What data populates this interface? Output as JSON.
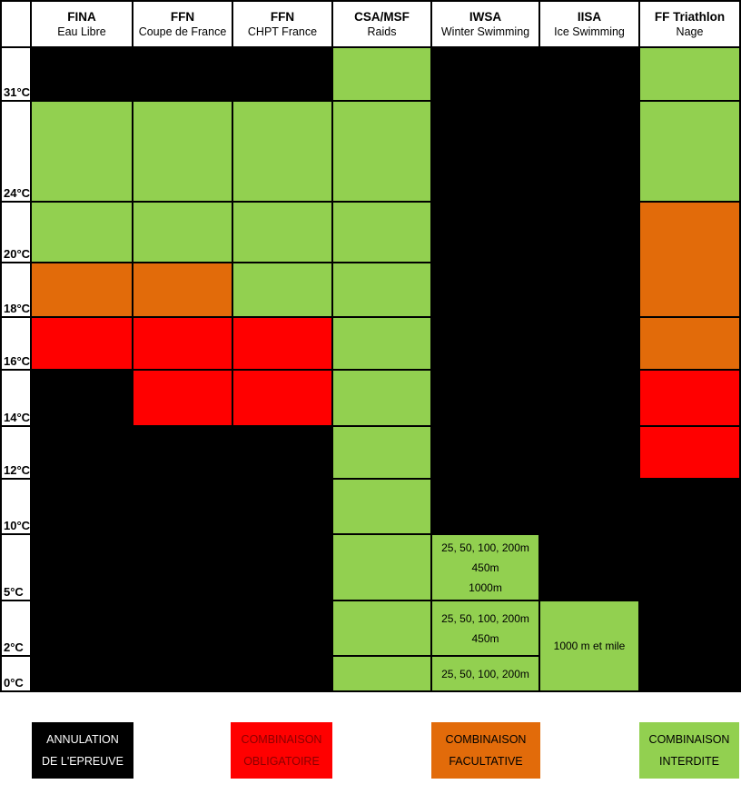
{
  "colors": {
    "black": "#000000",
    "green": "#92D050",
    "orange": "#E26B0A",
    "red": "#FF0000",
    "white": "#FFFFFF",
    "dark_red_text": "#8B0000"
  },
  "headers": [
    {
      "org": "FINA",
      "sub": "Eau Libre"
    },
    {
      "org": "FFN",
      "sub": "Coupe de France"
    },
    {
      "org": "FFN",
      "sub": "CHPT France"
    },
    {
      "org": "CSA/MSF",
      "sub": "Raids"
    },
    {
      "org": "IWSA",
      "sub": "Winter Swimming"
    },
    {
      "org": "IISA",
      "sub": "Ice Swimming"
    },
    {
      "org": "FF Triathlon",
      "sub": "Nage"
    }
  ],
  "row_labels": [
    "31°C",
    "24°C",
    "20°C",
    "18°C",
    "16°C",
    "14°C",
    "12°C",
    "10°C",
    "5°C",
    "2°C",
    "0°C"
  ],
  "grid": [
    {
      "column": "FINA Eau Libre",
      "cells": [
        {
          "r": 0,
          "s": 1,
          "color": "black"
        },
        {
          "r": 1,
          "s": 1,
          "color": "green"
        },
        {
          "r": 2,
          "s": 1,
          "color": "green"
        },
        {
          "r": 3,
          "s": 1,
          "color": "orange"
        },
        {
          "r": 4,
          "s": 1,
          "color": "red"
        },
        {
          "r": 5,
          "s": 6,
          "color": "black"
        }
      ]
    },
    {
      "column": "FFN Coupe de France",
      "cells": [
        {
          "r": 0,
          "s": 1,
          "color": "black"
        },
        {
          "r": 1,
          "s": 1,
          "color": "green"
        },
        {
          "r": 2,
          "s": 1,
          "color": "green"
        },
        {
          "r": 3,
          "s": 1,
          "color": "orange"
        },
        {
          "r": 4,
          "s": 1,
          "color": "red"
        },
        {
          "r": 5,
          "s": 1,
          "color": "red"
        },
        {
          "r": 6,
          "s": 5,
          "color": "black"
        }
      ]
    },
    {
      "column": "FFN CHPT France",
      "cells": [
        {
          "r": 0,
          "s": 1,
          "color": "black"
        },
        {
          "r": 1,
          "s": 1,
          "color": "green"
        },
        {
          "r": 2,
          "s": 1,
          "color": "green"
        },
        {
          "r": 3,
          "s": 1,
          "color": "green"
        },
        {
          "r": 4,
          "s": 1,
          "color": "red"
        },
        {
          "r": 5,
          "s": 1,
          "color": "red"
        },
        {
          "r": 6,
          "s": 5,
          "color": "black"
        }
      ]
    },
    {
      "column": "CSA/MSF Raids",
      "cells": [
        {
          "r": 0,
          "s": 1,
          "color": "green"
        },
        {
          "r": 1,
          "s": 1,
          "color": "green"
        },
        {
          "r": 2,
          "s": 1,
          "color": "green"
        },
        {
          "r": 3,
          "s": 1,
          "color": "green"
        },
        {
          "r": 4,
          "s": 1,
          "color": "green"
        },
        {
          "r": 5,
          "s": 1,
          "color": "green"
        },
        {
          "r": 6,
          "s": 1,
          "color": "green"
        },
        {
          "r": 7,
          "s": 1,
          "color": "green"
        },
        {
          "r": 8,
          "s": 1,
          "color": "green"
        },
        {
          "r": 9,
          "s": 1,
          "color": "green"
        },
        {
          "r": 10,
          "s": 1,
          "color": "green"
        }
      ]
    },
    {
      "column": "IWSA Winter Swimming",
      "cells": [
        {
          "r": 0,
          "s": 8,
          "color": "black"
        },
        {
          "r": 8,
          "s": 1,
          "color": "green",
          "lines": [
            "25, 50, 100, 200m",
            "450m",
            "1000m"
          ]
        },
        {
          "r": 9,
          "s": 1,
          "color": "green",
          "lines": [
            "25, 50, 100, 200m",
            "450m"
          ]
        },
        {
          "r": 10,
          "s": 1,
          "color": "green",
          "lines": [
            "25, 50, 100, 200m"
          ]
        }
      ]
    },
    {
      "column": "IISA Ice Swimming",
      "cells": [
        {
          "r": 0,
          "s": 9,
          "color": "black"
        },
        {
          "r": 9,
          "s": 2,
          "color": "green",
          "lines": [
            "1000 m et mile"
          ]
        }
      ]
    },
    {
      "column": "FF Triathlon Nage",
      "cells": [
        {
          "r": 0,
          "s": 1,
          "color": "green"
        },
        {
          "r": 1,
          "s": 1,
          "color": "green"
        },
        {
          "r": 2,
          "s": 2,
          "color": "orange"
        },
        {
          "r": 4,
          "s": 1,
          "color": "orange"
        },
        {
          "r": 5,
          "s": 1,
          "color": "red"
        },
        {
          "r": 6,
          "s": 1,
          "color": "red"
        },
        {
          "r": 7,
          "s": 4,
          "color": "black"
        }
      ]
    }
  ],
  "legend": [
    {
      "lines": [
        "ANNULATION",
        "DE L'EPREUVE"
      ],
      "bg": "#000000",
      "fg": "#FFFFFF"
    },
    {
      "lines": [
        "COMBINAISON",
        "OBLIGATOIRE"
      ],
      "bg": "#FF0000",
      "fg": "#8B0000"
    },
    {
      "lines": [
        "COMBINAISON",
        "FACULTATIVE"
      ],
      "bg": "#E26B0A",
      "fg": "#000000"
    },
    {
      "lines": [
        "COMBINAISON",
        "INTERDITE"
      ],
      "bg": "#92D050",
      "fg": "#000000"
    }
  ],
  "chart_data": {
    "type": "heatmap",
    "title": "",
    "x_categories": [
      "FINA Eau Libre",
      "FFN Coupe de France",
      "FFN CHPT France",
      "CSA/MSF Raids",
      "IWSA Winter Swimming",
      "IISA Ice Swimming",
      "FF Triathlon Nage"
    ],
    "y_categories": [
      "31°C",
      "24°C",
      "20°C",
      "18°C",
      "16°C",
      "14°C",
      "12°C",
      "10°C",
      "5°C",
      "2°C",
      "0°C"
    ],
    "legend_position": "bottom",
    "value_meanings": {
      "black": "ANNULATION DE L'EPREUVE",
      "red": "COMBINAISON OBLIGATOIRE",
      "orange": "COMBINAISON FACULTATIVE",
      "green": "COMBINAISON INTERDITE"
    },
    "matrix": [
      [
        "black",
        "black",
        "black",
        "green",
        "black",
        "black",
        "green"
      ],
      [
        "green",
        "green",
        "green",
        "green",
        "black",
        "black",
        "green"
      ],
      [
        "green",
        "green",
        "green",
        "green",
        "black",
        "black",
        "orange"
      ],
      [
        "orange",
        "orange",
        "green",
        "green",
        "black",
        "black",
        "orange"
      ],
      [
        "red",
        "red",
        "red",
        "green",
        "black",
        "black",
        "orange"
      ],
      [
        "black",
        "red",
        "red",
        "green",
        "black",
        "black",
        "red"
      ],
      [
        "black",
        "black",
        "black",
        "green",
        "black",
        "black",
        "red"
      ],
      [
        "black",
        "black",
        "black",
        "green",
        "black",
        "black",
        "black"
      ],
      [
        "black",
        "black",
        "black",
        "green",
        "green",
        "black",
        "black"
      ],
      [
        "black",
        "black",
        "black",
        "green",
        "green",
        "green",
        "black"
      ],
      [
        "black",
        "black",
        "black",
        "green",
        "green",
        "green",
        "black"
      ]
    ],
    "cell_annotations": [
      {
        "row": "5°C",
        "column": "IWSA Winter Swimming",
        "text": "25, 50, 100, 200m / 450m / 1000m"
      },
      {
        "row": "2°C",
        "column": "IWSA Winter Swimming",
        "text": "25, 50, 100, 200m / 450m"
      },
      {
        "row": "0°C",
        "column": "IWSA Winter Swimming",
        "text": "25, 50, 100, 200m"
      },
      {
        "row": "2°C–0°C (merged)",
        "column": "IISA Ice Swimming",
        "text": "1000 m et mile"
      },
      {
        "row": "20°C–18°C (merged)",
        "column": "FF Triathlon Nage",
        "text": ""
      }
    ]
  }
}
